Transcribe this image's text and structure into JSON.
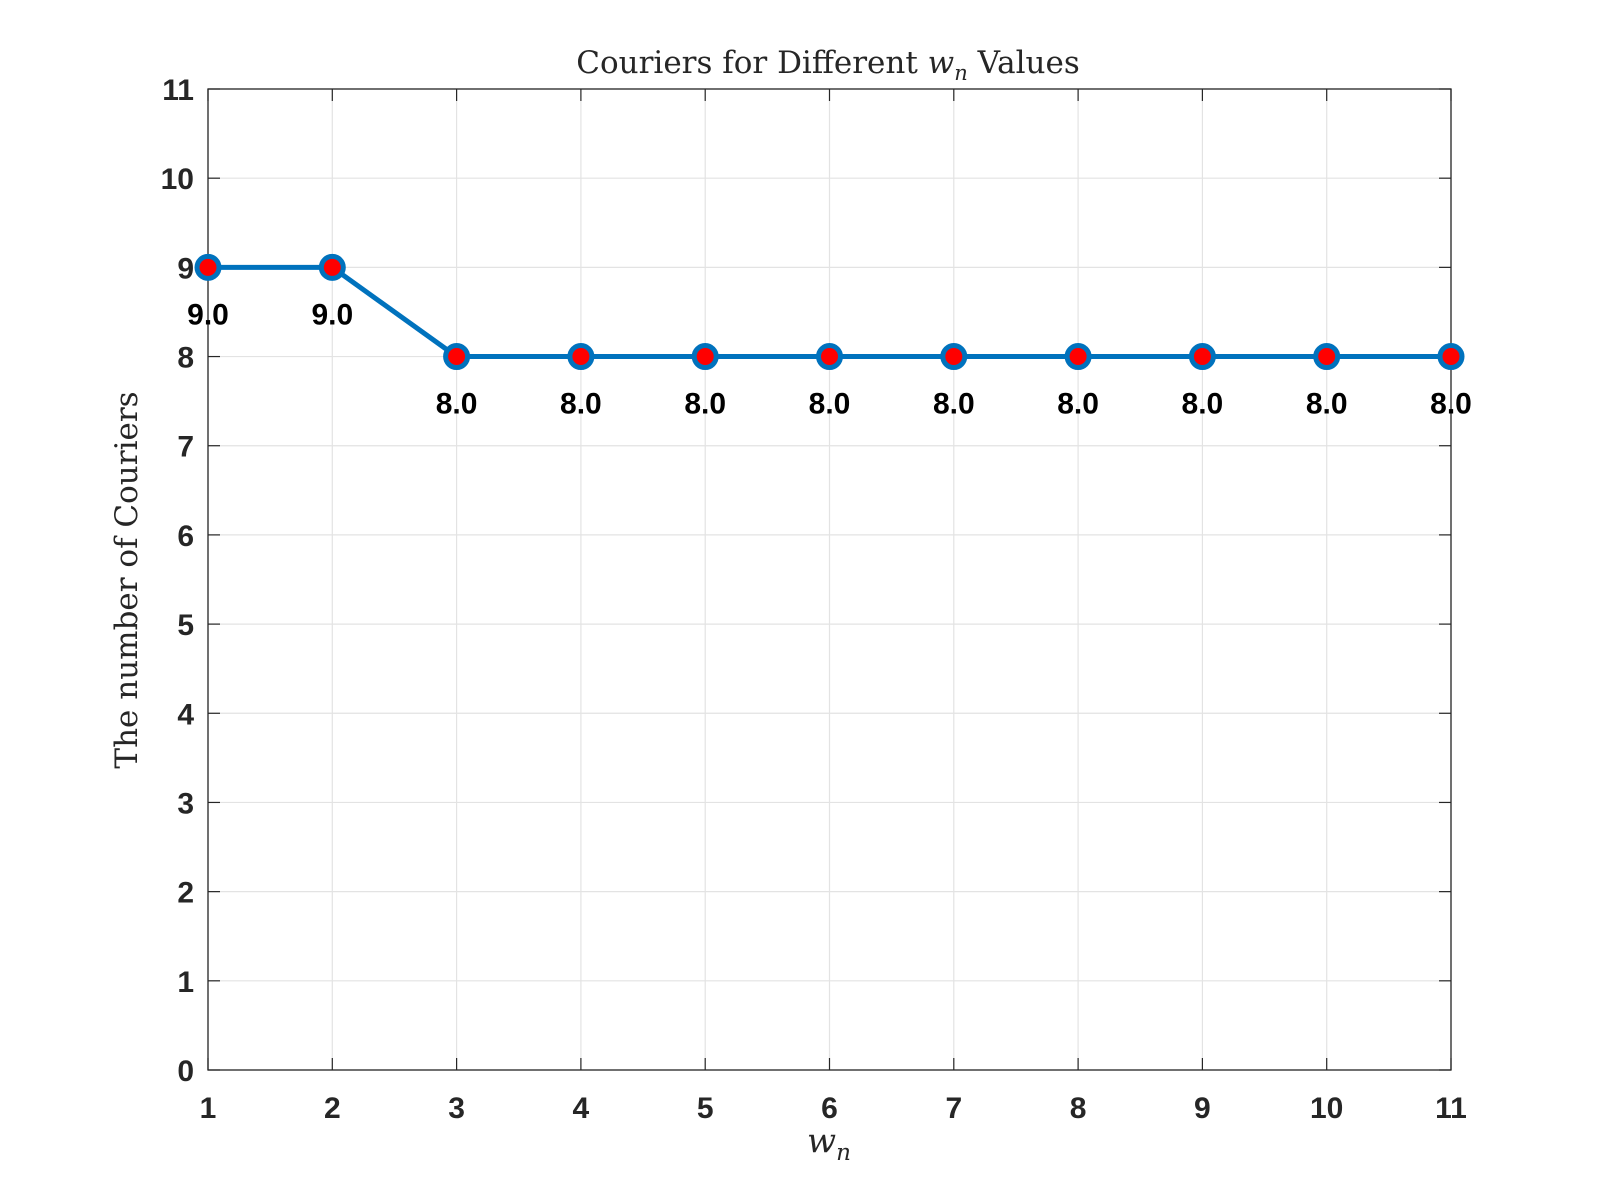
{
  "chart_data": {
    "type": "line",
    "title_prefix": "Couriers for Different ",
    "title_var": "w",
    "title_sub": "n",
    "title_suffix": " Values",
    "xlabel_var": "w",
    "xlabel_sub": "n",
    "ylabel": "The number of Couriers",
    "x": [
      1,
      2,
      3,
      4,
      5,
      6,
      7,
      8,
      9,
      10,
      11
    ],
    "series": [
      {
        "values": [
          9,
          9,
          8,
          8,
          8,
          8,
          8,
          8,
          8,
          8,
          8
        ]
      }
    ],
    "data_labels": [
      "9.0",
      "9.0",
      "8.0",
      "8.0",
      "8.0",
      "8.0",
      "8.0",
      "8.0",
      "8.0",
      "8.0",
      "8.0"
    ],
    "xticks": [
      "1",
      "2",
      "3",
      "4",
      "5",
      "6",
      "7",
      "8",
      "9",
      "10",
      "11"
    ],
    "yticks": [
      "0",
      "1",
      "2",
      "3",
      "4",
      "5",
      "6",
      "7",
      "8",
      "9",
      "10",
      "11"
    ],
    "xlim": [
      1,
      11
    ],
    "ylim": [
      0,
      11
    ],
    "grid": true,
    "line_color": "#0072BD",
    "marker_fill": "#FF0000",
    "marker_edge": "#0072BD"
  }
}
